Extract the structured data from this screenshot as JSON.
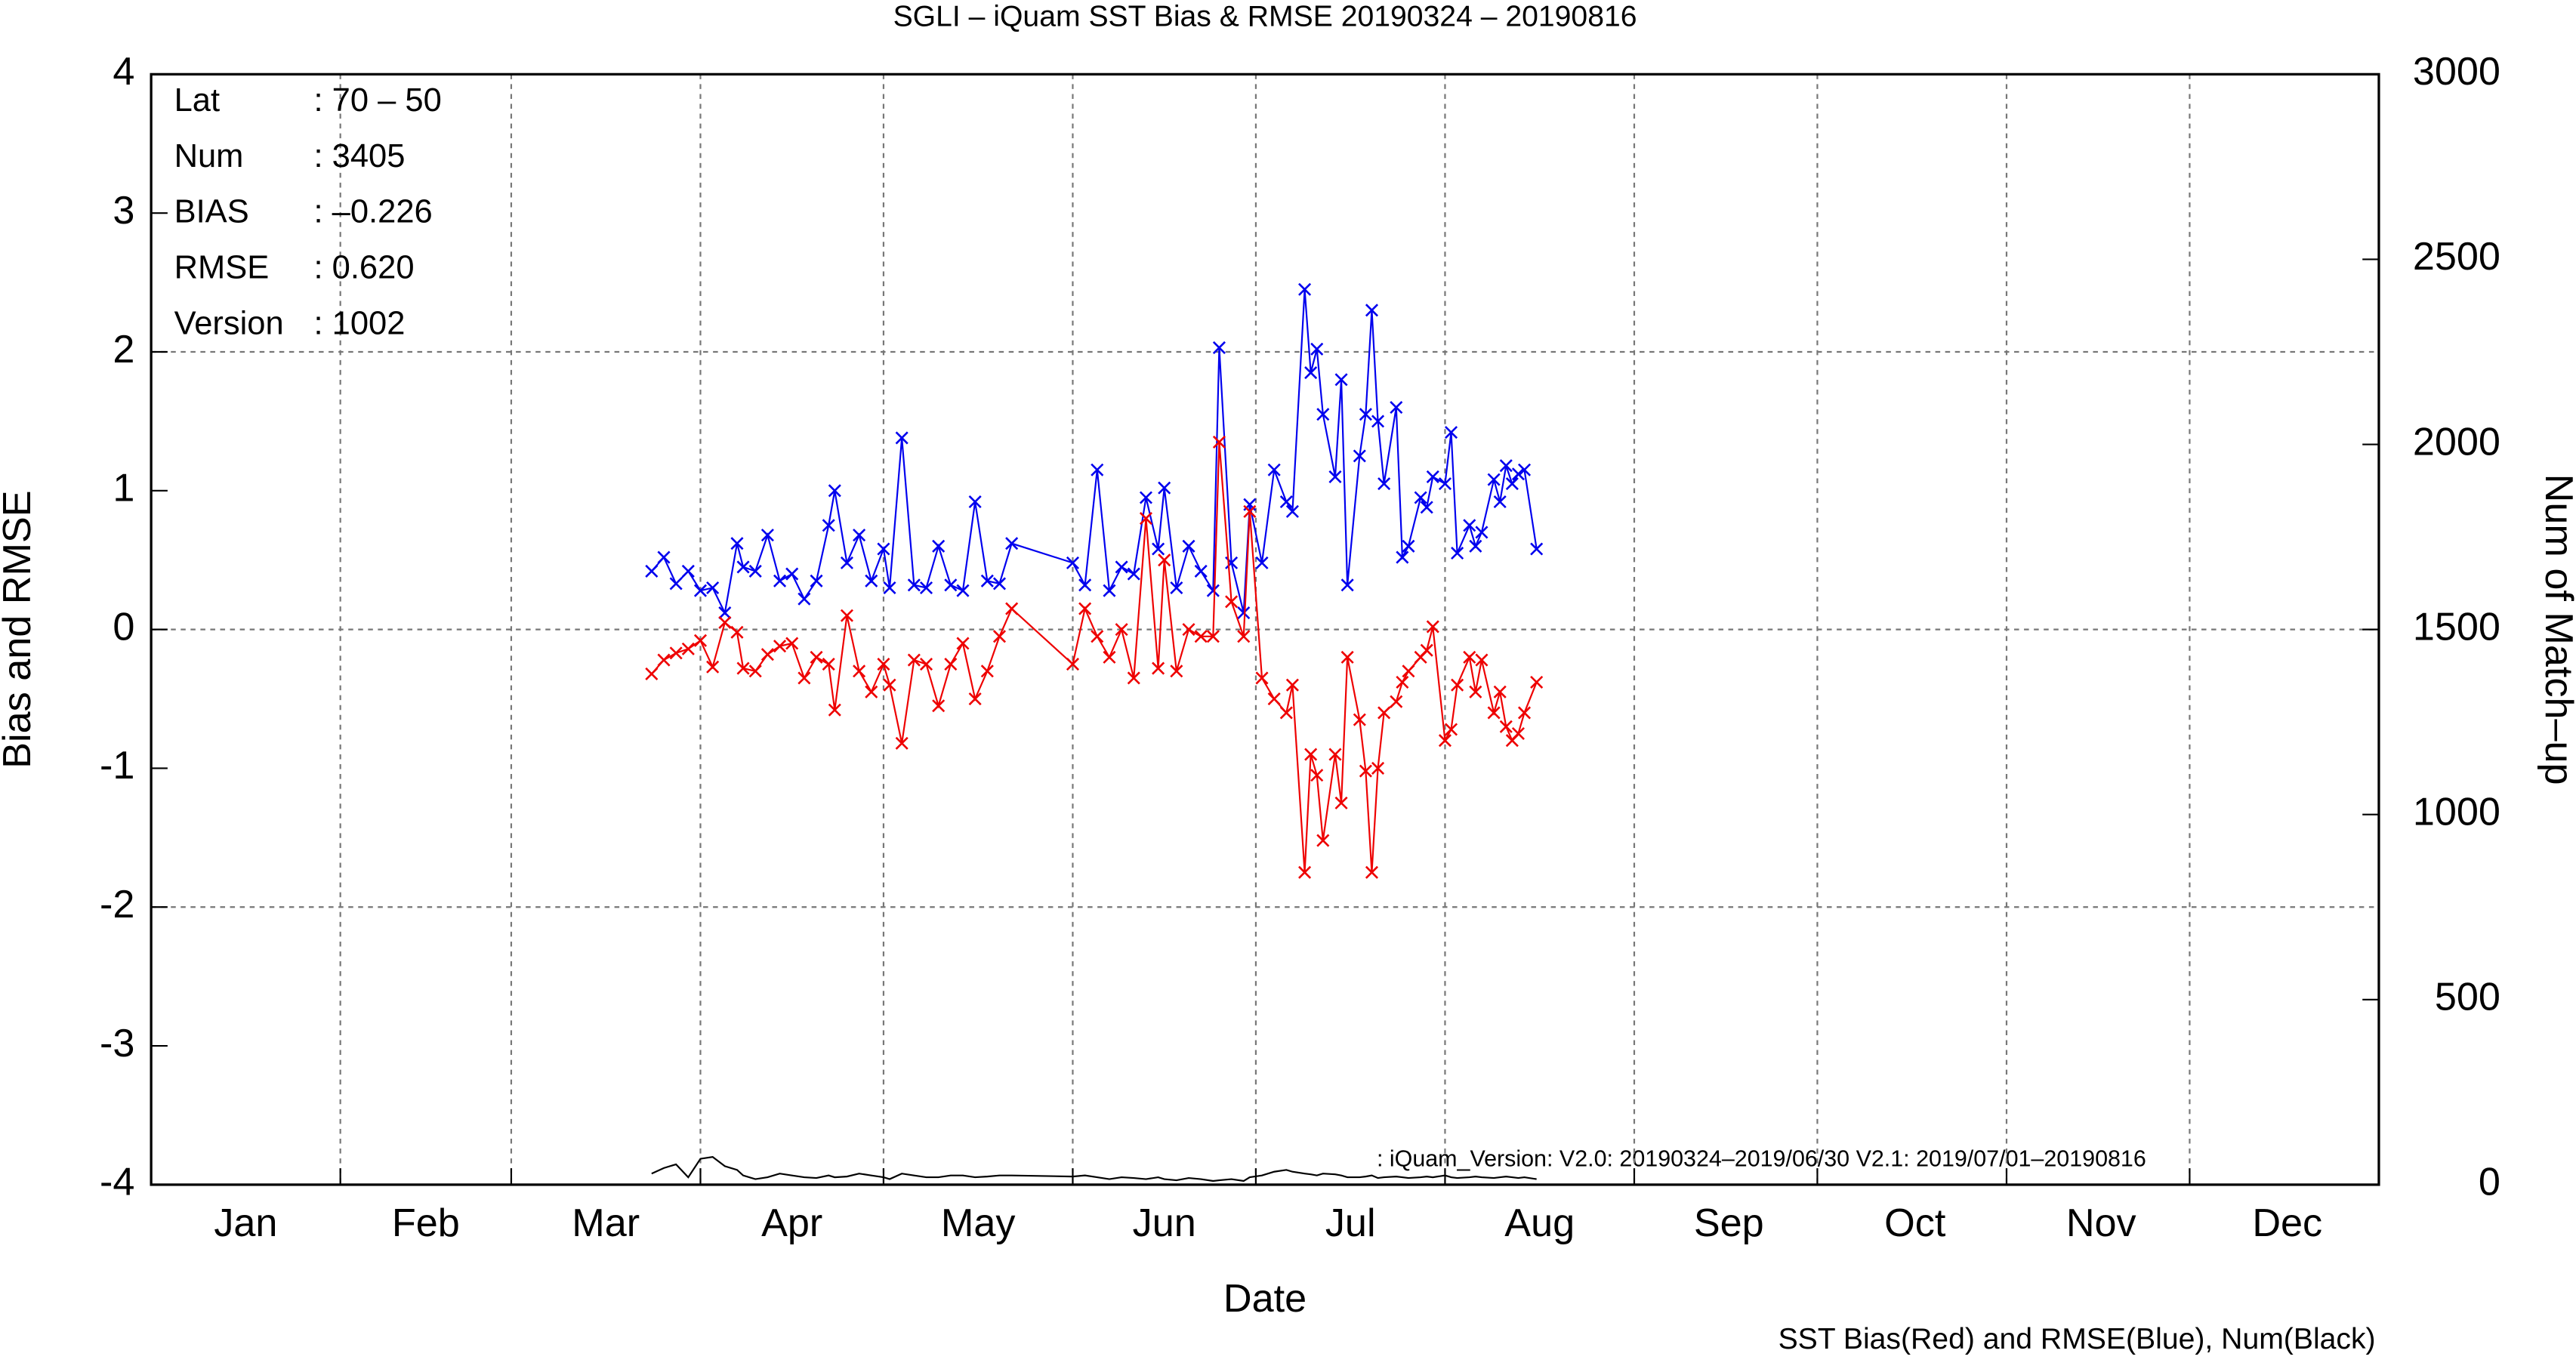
{
  "chart_data": {
    "type": "line",
    "title": "SGLI – iQuam  SST Bias & RMSE 20190324 – 20190816",
    "x_label": "Date",
    "y_label": "Bias and RMSE",
    "y2_label": "Num of Match–up",
    "footer": "SST Bias(Red) and RMSE(Blue), Num(Black)",
    "note": ": iQuam_Version: V2.0: 20190324–2019/06/30 V2.1: 2019/07/01–20190816",
    "stats": [
      {
        "label": "Lat",
        "value": ": 70 – 50"
      },
      {
        "label": "Num",
        "value": ": 3405"
      },
      {
        "label": "BIAS",
        "value": ": –0.226"
      },
      {
        "label": "RMSE",
        "value": ": 0.620"
      },
      {
        "label": "Version",
        "value": ": 1002"
      }
    ],
    "xlim": [
      0,
      365
    ],
    "xticks": [
      {
        "value": 15.5,
        "label": "Jan"
      },
      {
        "value": 45,
        "label": "Feb"
      },
      {
        "value": 74.5,
        "label": "Mar"
      },
      {
        "value": 105,
        "label": "Apr"
      },
      {
        "value": 135.5,
        "label": "May"
      },
      {
        "value": 166,
        "label": "Jun"
      },
      {
        "value": 196.5,
        "label": "Jul"
      },
      {
        "value": 227.5,
        "label": "Aug"
      },
      {
        "value": 258.5,
        "label": "Sep"
      },
      {
        "value": 289,
        "label": "Oct"
      },
      {
        "value": 319.5,
        "label": "Nov"
      },
      {
        "value": 350,
        "label": "Dec"
      }
    ],
    "x_gridlines": [
      31,
      59,
      90,
      120,
      151,
      181,
      212,
      243,
      273,
      304,
      334
    ],
    "ylim": [
      -4,
      4
    ],
    "yticks": [
      -4,
      -3,
      -2,
      -1,
      0,
      1,
      2,
      3,
      4
    ],
    "y_gridlines": [
      -2,
      0,
      2
    ],
    "y2lim": [
      0,
      3000
    ],
    "y2ticks": [
      0,
      500,
      1000,
      1500,
      2000,
      2500,
      3000
    ],
    "x": [
      82,
      84,
      86,
      88,
      90,
      92,
      94,
      96,
      97,
      99,
      101,
      103,
      105,
      107,
      109,
      111,
      112,
      114,
      116,
      118,
      120,
      121,
      123,
      125,
      127,
      129,
      131,
      133,
      135,
      137,
      139,
      141,
      151,
      153,
      155,
      157,
      159,
      161,
      163,
      165,
      166,
      168,
      170,
      172,
      174,
      175,
      177,
      179,
      180,
      182,
      184,
      186,
      187,
      189,
      190,
      191,
      192,
      194,
      195,
      196,
      198,
      199,
      200,
      201,
      202,
      204,
      205,
      206,
      208,
      209,
      210,
      212,
      213,
      214,
      216,
      217,
      218,
      220,
      221,
      222,
      223,
      224,
      225,
      227
    ],
    "series": [
      {
        "name": "RMSE",
        "color": "#0000ee",
        "marker": true,
        "values": [
          0.42,
          0.52,
          0.33,
          0.42,
          0.28,
          0.3,
          0.12,
          0.62,
          0.45,
          0.42,
          0.68,
          0.35,
          0.4,
          0.22,
          0.35,
          0.75,
          1.0,
          0.48,
          0.68,
          0.35,
          0.58,
          0.3,
          1.38,
          0.32,
          0.3,
          0.6,
          0.32,
          0.28,
          0.92,
          0.35,
          0.33,
          0.62,
          0.48,
          0.32,
          1.15,
          0.28,
          0.45,
          0.4,
          0.95,
          0.58,
          1.02,
          0.3,
          0.6,
          0.42,
          0.28,
          2.03,
          0.48,
          0.12,
          0.9,
          0.48,
          1.15,
          0.92,
          0.85,
          2.45,
          1.85,
          2.02,
          1.55,
          1.1,
          1.8,
          0.32,
          1.25,
          1.55,
          2.3,
          1.5,
          1.05,
          1.6,
          0.52,
          0.6,
          0.95,
          0.88,
          1.1,
          1.05,
          1.42,
          0.55,
          0.75,
          0.6,
          0.7,
          1.08,
          0.92,
          1.18,
          1.05,
          1.12,
          1.15,
          0.58
        ]
      },
      {
        "name": "Bias",
        "color": "#ee0000",
        "marker": true,
        "values": [
          -0.32,
          -0.22,
          -0.17,
          -0.14,
          -0.08,
          -0.27,
          0.05,
          -0.02,
          -0.28,
          -0.3,
          -0.18,
          -0.12,
          -0.1,
          -0.35,
          -0.2,
          -0.25,
          -0.58,
          0.1,
          -0.3,
          -0.45,
          -0.25,
          -0.4,
          -0.82,
          -0.22,
          -0.25,
          -0.55,
          -0.25,
          -0.1,
          -0.5,
          -0.3,
          -0.05,
          0.15,
          -0.25,
          0.15,
          -0.05,
          -0.2,
          0.0,
          -0.35,
          0.8,
          -0.28,
          0.5,
          -0.3,
          0.0,
          -0.05,
          -0.05,
          1.35,
          0.2,
          -0.05,
          0.85,
          -0.35,
          -0.5,
          -0.6,
          -0.4,
          -1.75,
          -0.9,
          -1.05,
          -1.52,
          -0.9,
          -1.25,
          -0.2,
          -0.65,
          -1.02,
          -1.75,
          -1.0,
          -0.6,
          -0.52,
          -0.38,
          -0.3,
          -0.2,
          -0.15,
          0.02,
          -0.8,
          -0.72,
          -0.4,
          -0.2,
          -0.45,
          -0.22,
          -0.6,
          -0.45,
          -0.7,
          -0.8,
          -0.75,
          -0.6,
          -0.38
        ]
      },
      {
        "name": "Num",
        "color": "#000000",
        "marker": false,
        "axis": "y2",
        "values": [
          30,
          45,
          55,
          20,
          70,
          75,
          50,
          40,
          25,
          15,
          20,
          30,
          25,
          20,
          18,
          25,
          20,
          22,
          30,
          25,
          20,
          15,
          30,
          25,
          20,
          20,
          25,
          25,
          20,
          22,
          25,
          25,
          22,
          25,
          20,
          15,
          20,
          18,
          15,
          20,
          15,
          12,
          18,
          15,
          10,
          12,
          15,
          10,
          20,
          25,
          35,
          40,
          35,
          30,
          28,
          25,
          30,
          28,
          25,
          20,
          20,
          22,
          25,
          18,
          20,
          22,
          20,
          18,
          20,
          22,
          20,
          25,
          20,
          18,
          20,
          22,
          20,
          18,
          20,
          22,
          20,
          18,
          20,
          15
        ]
      }
    ]
  }
}
